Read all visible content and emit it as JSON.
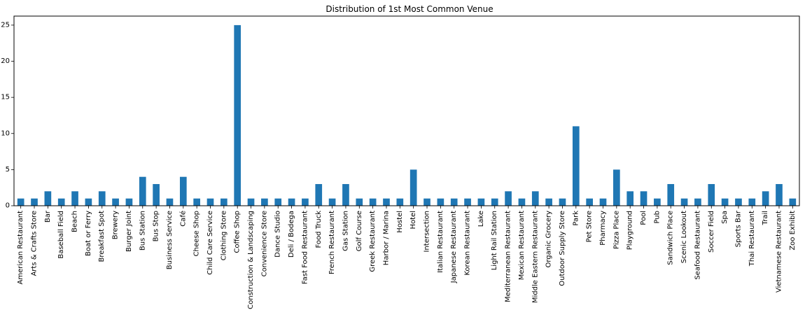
{
  "chart_data": {
    "type": "bar",
    "title": "Distribution of 1st Most Common Venue",
    "xlabel": "",
    "ylabel": "",
    "ylim": [
      0,
      26.25
    ],
    "yticks": [
      0,
      5,
      10,
      15,
      20,
      25
    ],
    "grid": false,
    "bar_color": "#1f77b4",
    "categories": [
      "American Restaurant",
      "Arts & Crafts Store",
      "Bar",
      "Baseball Field",
      "Beach",
      "Boat or Ferry",
      "Breakfast Spot",
      "Brewery",
      "Burger Joint",
      "Bus Station",
      "Bus Stop",
      "Business Service",
      "Café",
      "Cheese Shop",
      "Child Care Service",
      "Clothing Store",
      "Coffee Shop",
      "Construction & Landscaping",
      "Convenience Store",
      "Dance Studio",
      "Deli / Bodega",
      "Fast Food Restaurant",
      "Food Truck",
      "French Restaurant",
      "Gas Station",
      "Golf Course",
      "Greek Restaurant",
      "Harbor / Marina",
      "Hostel",
      "Hotel",
      "Intersection",
      "Italian Restaurant",
      "Japanese Restaurant",
      "Korean Restaurant",
      "Lake",
      "Light Rail Station",
      "Mediterranean Restaurant",
      "Mexican Restaurant",
      "Middle Eastern Restaurant",
      "Organic Grocery",
      "Outdoor Supply Store",
      "Park",
      "Pet Store",
      "Pharmacy",
      "Pizza Place",
      "Playground",
      "Pool",
      "Pub",
      "Sandwich Place",
      "Scenic Lookout",
      "Seafood Restaurant",
      "Soccer Field",
      "Spa",
      "Sports Bar",
      "Thai Restaurant",
      "Trail",
      "Vietnamese Restaurant",
      "Zoo Exhibit"
    ],
    "values": [
      1,
      1,
      2,
      1,
      2,
      1,
      2,
      1,
      1,
      4,
      3,
      1,
      4,
      1,
      1,
      1,
      25,
      1,
      1,
      1,
      1,
      1,
      3,
      1,
      3,
      1,
      1,
      1,
      1,
      5,
      1,
      1,
      1,
      1,
      1,
      1,
      2,
      1,
      2,
      1,
      1,
      11,
      1,
      1,
      5,
      2,
      2,
      1,
      3,
      1,
      1,
      3,
      1,
      1,
      1,
      2,
      3,
      1
    ]
  }
}
